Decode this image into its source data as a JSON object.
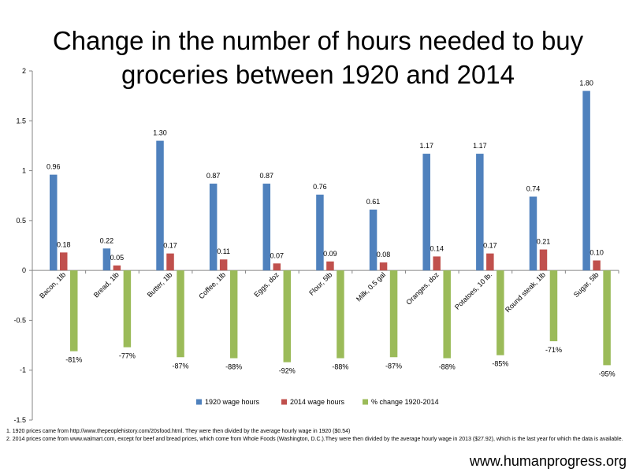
{
  "chart_data": {
    "type": "bar",
    "title_line1": "Change in the number of hours needed to buy",
    "title_line2": "groceries between 1920 and 2014",
    "categories": [
      "Bacon, 1lb",
      "Bread, 1lb",
      "Butter, 1lb",
      "Coffee, 1lb",
      "Eggs, doz",
      "Flour, 5lb",
      "Milk, 0.5 gal",
      "Oranges, doz",
      "Potatoes, 10 lb.",
      "Round steak, 1lb",
      "Sugar, 5lb"
    ],
    "series": [
      {
        "name": "1920 wage hours",
        "color": "#4F81BD",
        "values": [
          0.96,
          0.22,
          1.3,
          0.87,
          0.87,
          0.76,
          0.61,
          1.17,
          1.17,
          0.74,
          1.8
        ],
        "labels": [
          "0.96",
          "0.22",
          "1.30",
          "0.87",
          "0.87",
          "0.76",
          "0.61",
          "1.17",
          "1.17",
          "0.74",
          "1.80"
        ]
      },
      {
        "name": "2014 wage hours",
        "color": "#C0504D",
        "values": [
          0.18,
          0.05,
          0.17,
          0.11,
          0.07,
          0.09,
          0.08,
          0.14,
          0.17,
          0.21,
          0.1
        ],
        "labels": [
          "0.18",
          "0.05",
          "0.17",
          "0.11",
          "0.07",
          "0.09",
          "0.08",
          "0.14",
          "0.17",
          "0.21",
          "0.10"
        ]
      },
      {
        "name": "% change 1920-2014",
        "color": "#9BBB59",
        "values": [
          -0.81,
          -0.77,
          -0.87,
          -0.88,
          -0.92,
          -0.88,
          -0.87,
          -0.88,
          -0.85,
          -0.71,
          -0.95
        ],
        "labels": [
          "-81%",
          "-77%",
          "-87%",
          "-88%",
          "-92%",
          "-88%",
          "-87%",
          "-88%",
          "-85%",
          "-71%",
          "-95%"
        ]
      }
    ],
    "ylim": [
      -1.5,
      2
    ],
    "yticks": [
      -1.5,
      -1,
      -0.5,
      0,
      0.5,
      1,
      1.5,
      2
    ],
    "ytick_labels": [
      "-1.5",
      "-1",
      "-0.5",
      "0",
      "0.5",
      "1",
      "1.5",
      "2"
    ],
    "xlabel": "",
    "ylabel": "",
    "grid": false,
    "legend_position": "bottom"
  },
  "footnotes": [
    "1. 1920 prices came from http://www.thepeoplehistory.com/20sfood.html. They were then divided by the average hourly wage in 1920 ($0.54)",
    "2. 2014 prices come from www.walmart.com, except for beef and bread prices, which come from Whole Foods (Washington, D.C.).They were then divided by the average hourly wage in 2013 ($27.92), which is the last year for which the data is available."
  ],
  "credit": "www.humanprogress.org"
}
